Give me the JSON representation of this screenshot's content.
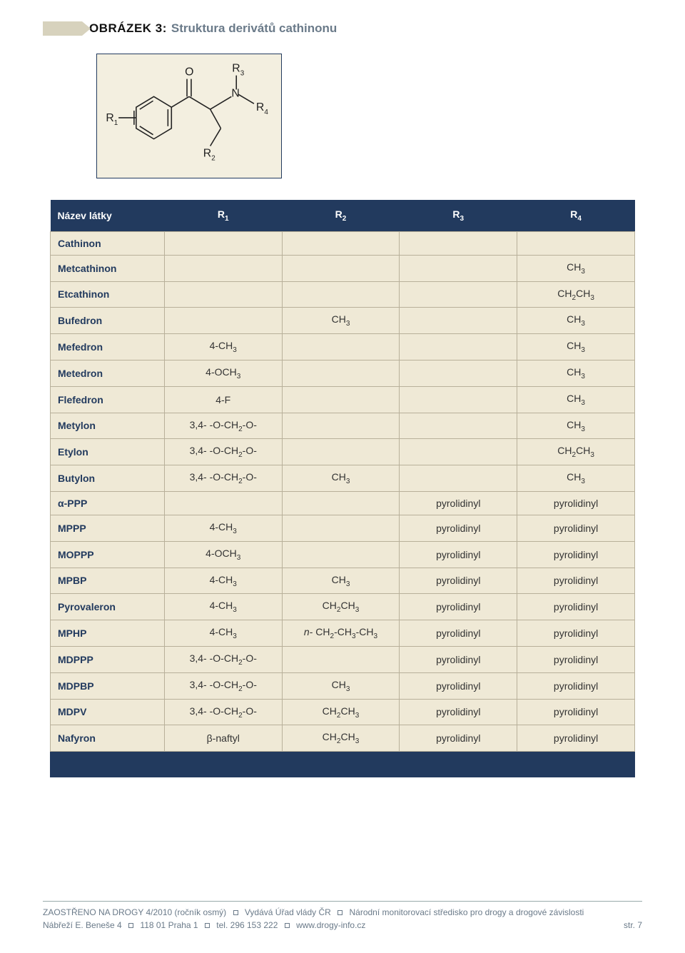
{
  "figure": {
    "label": "OBRÁZEK 3:",
    "title": "Struktura derivátů cathinonu"
  },
  "diagram": {
    "labels": {
      "R1": "R",
      "R1s": "1",
      "R2": "R",
      "R2s": "2",
      "R3": "R",
      "R3s": "3",
      "R4": "R",
      "R4s": "4",
      "O": "O",
      "N": "N"
    },
    "colors": {
      "stroke": "#222222",
      "bg": "#f3efe0",
      "border": "#223a5e"
    }
  },
  "table": {
    "header": {
      "name": "Název látky",
      "r1": "R",
      "r1s": "1",
      "r2": "R",
      "r2s": "2",
      "r3": "R",
      "r3s": "3",
      "r4": "R",
      "r4s": "4"
    },
    "colors": {
      "header_bg": "#223a5e",
      "header_text": "#ffffff",
      "cell_bg": "#efe9d6",
      "cell_border": "#b8b09a",
      "name_text": "#223a5e"
    }
  },
  "rows": [
    {
      "name": "Cathinon",
      "r1": "",
      "r2": "",
      "r3": "",
      "r4": ""
    },
    {
      "name": "Metcathinon",
      "r1": "",
      "r2": "",
      "r3": "",
      "r4": "CH3"
    },
    {
      "name": "Etcathinon",
      "r1": "",
      "r2": "",
      "r3": "",
      "r4": "CH2CH3"
    },
    {
      "name": "Bufedron",
      "r1": "",
      "r2": "CH3",
      "r3": "",
      "r4": "CH3"
    },
    {
      "name": "Mefedron",
      "r1": "4-CH3",
      "r2": "",
      "r3": "",
      "r4": "CH3"
    },
    {
      "name": "Metedron",
      "r1": "4-OCH3",
      "r2": "",
      "r3": "",
      "r4": "CH3"
    },
    {
      "name": "Flefedron",
      "r1": "4-F",
      "r2": "",
      "r3": "",
      "r4": "CH3"
    },
    {
      "name": "Metylon",
      "r1": "3,4- -O-CH2-O-",
      "r2": "",
      "r3": "",
      "r4": "CH3"
    },
    {
      "name": "Etylon",
      "r1": "3,4- -O-CH2-O-",
      "r2": "",
      "r3": "",
      "r4": "CH2CH3"
    },
    {
      "name": "Butylon",
      "r1": "3,4- -O-CH2-O-",
      "r2": "CH3",
      "r3": "",
      "r4": "CH3"
    },
    {
      "name": "α-PPP",
      "r1": "",
      "r2": "",
      "r3": "pyrolidinyl",
      "r4": "pyrolidinyl"
    },
    {
      "name": "MPPP",
      "r1": "4-CH3",
      "r2": "",
      "r3": "pyrolidinyl",
      "r4": "pyrolidinyl"
    },
    {
      "name": "MOPPP",
      "r1": "4-OCH3",
      "r2": "",
      "r3": "pyrolidinyl",
      "r4": "pyrolidinyl"
    },
    {
      "name": "MPBP",
      "r1": "4-CH3",
      "r2": "CH3",
      "r3": "pyrolidinyl",
      "r4": "pyrolidinyl"
    },
    {
      "name": "Pyrovaleron",
      "r1": "4-CH3",
      "r2": "CH2CH3",
      "r3": "pyrolidinyl",
      "r4": "pyrolidinyl"
    },
    {
      "name": "MPHP",
      "r1": "4-CH3",
      "r2": "n- CH2-CH3-CH3",
      "r3": "pyrolidinyl",
      "r4": "pyrolidinyl"
    },
    {
      "name": "MDPPP",
      "r1": "3,4- -O-CH2-O-",
      "r2": "",
      "r3": "pyrolidinyl",
      "r4": "pyrolidinyl"
    },
    {
      "name": "MDPBP",
      "r1": "3,4- -O-CH2-O-",
      "r2": "CH3",
      "r3": "pyrolidinyl",
      "r4": "pyrolidinyl"
    },
    {
      "name": "MDPV",
      "r1": "3,4- -O-CH2-O-",
      "r2": "CH2CH3",
      "r3": "pyrolidinyl",
      "r4": "pyrolidinyl"
    },
    {
      "name": "Nafyron",
      "r1": "β-naftyl",
      "r2": "CH2CH3",
      "r3": "pyrolidinyl",
      "r4": "pyrolidinyl"
    }
  ],
  "footer": {
    "line1a": "ZAOSTŘENO NA DROGY 4/2010 (ročník osmý)",
    "line1b": "Vydává Úřad vlády ČR",
    "line1c": "Národní monitorovací středisko pro drogy a drogové závislosti",
    "line2a": "Nábřeží E. Beneše 4",
    "line2b": "118 01 Praha 1",
    "line2c": "tel. 296 153 222",
    "line2d": "www.drogy-info.cz",
    "page": "str. 7"
  }
}
